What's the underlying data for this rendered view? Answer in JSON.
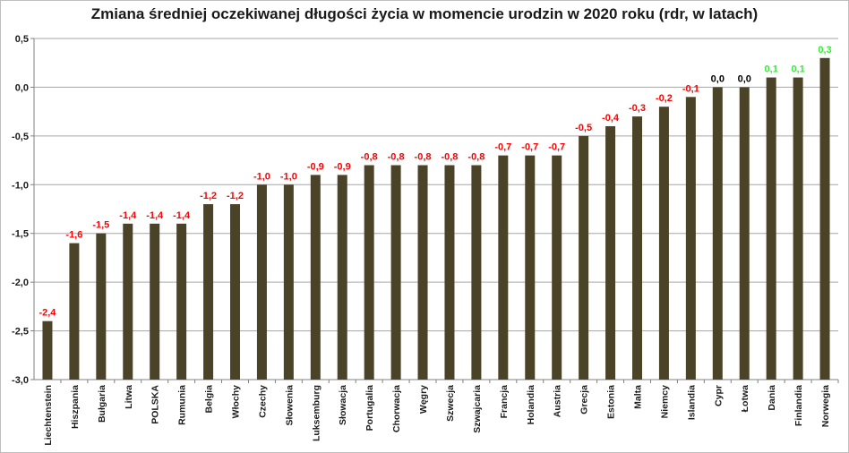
{
  "chart_data": {
    "type": "bar",
    "title": "Zmiana średniej oczekiwanej długości życia w momencie urodzin w 2020 roku (rdr, w latach)",
    "xlabel": "",
    "ylabel": "",
    "ylim": [
      -3.0,
      0.5
    ],
    "yticks": [
      0.5,
      0.0,
      -0.5,
      -1.0,
      -1.5,
      -2.0,
      -2.5,
      -3.0
    ],
    "ytick_labels": [
      "0,5",
      "0,0",
      "-0,5",
      "-1,0",
      "-1,5",
      "-2,0",
      "-2,5",
      "-3,0"
    ],
    "grid": true,
    "legend": "none",
    "categories": [
      "Liechtenstein",
      "Hiszpania",
      "Bułgaria",
      "Litwa",
      "POLSKA",
      "Rumunia",
      "Belgia",
      "Włochy",
      "Czechy",
      "Słowenia",
      "Luksemburg",
      "Słowacja",
      "Portugalia",
      "Chorwacja",
      "Węgry",
      "Szwecja",
      "Szwajcaria",
      "Francja",
      "Holandia",
      "Austria",
      "Grecja",
      "Estonia",
      "Malta",
      "Niemcy",
      "Islandia",
      "Cypr",
      "Łotwa",
      "Dania",
      "Finlandia",
      "Norwegia"
    ],
    "values": [
      -2.4,
      -1.6,
      -1.5,
      -1.4,
      -1.4,
      -1.4,
      -1.2,
      -1.2,
      -1.0,
      -1.0,
      -0.9,
      -0.9,
      -0.8,
      -0.8,
      -0.8,
      -0.8,
      -0.8,
      -0.7,
      -0.7,
      -0.7,
      -0.5,
      -0.4,
      -0.3,
      -0.2,
      -0.1,
      0.0,
      0.0,
      0.1,
      0.1,
      0.3
    ],
    "data_labels": [
      "-2,4",
      "-1,6",
      "-1,5",
      "-1,4",
      "-1,4",
      "-1,4",
      "-1,2",
      "-1,2",
      "-1,0",
      "-1,0",
      "-0,9",
      "-0,9",
      "-0,8",
      "-0,8",
      "-0,8",
      "-0,8",
      "-0,8",
      "-0,7",
      "-0,7",
      "-0,7",
      "-0,5",
      "-0,4",
      "-0,3",
      "-0,2",
      "-0,1",
      "0,0",
      "0,0",
      "0,1",
      "0,1",
      "0,3"
    ],
    "colors": {
      "bar": "#4a4328",
      "negative_label": "#ff0000",
      "zero_label": "#000000",
      "positive_label": "#33ee33",
      "grid": "#a6a6a6"
    }
  }
}
